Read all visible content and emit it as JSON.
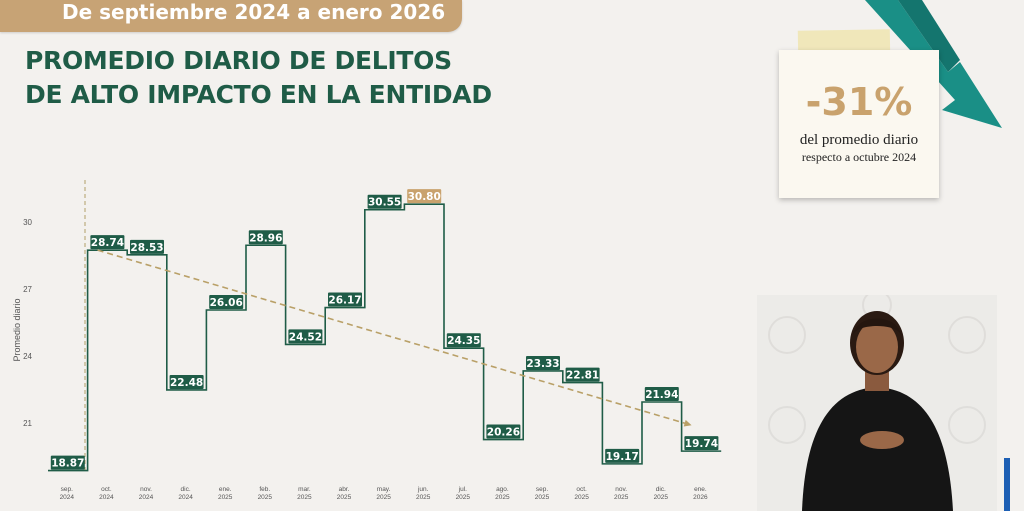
{
  "banner": {
    "text": "De septiembre 2024 a enero 2026"
  },
  "title": {
    "line1": "PROMEDIO DIARIO DE DELITOS",
    "line2": "DE ALTO IMPACTO EN LA ENTIDAD"
  },
  "stat_card": {
    "value": "-31%",
    "line1": "del promedio diario",
    "line2": "respecto a octubre 2024"
  },
  "colors": {
    "accent_green": "#1f5c47",
    "highlight_gold": "#c9a26d",
    "trend_arrow": "#1a8f86",
    "background": "#f3f1ee"
  },
  "chart_data": {
    "type": "line",
    "step": true,
    "ylabel": "Promedio diario",
    "ylim": [
      18.5,
      31.5
    ],
    "yticks": [
      "30",
      "27",
      "24",
      "21"
    ],
    "categories": [
      [
        "sep.",
        "2024"
      ],
      [
        "oct.",
        "2024"
      ],
      [
        "nov.",
        "2024"
      ],
      [
        "dic.",
        "2024"
      ],
      [
        "ene.",
        "2025"
      ],
      [
        "feb.",
        "2025"
      ],
      [
        "mar.",
        "2025"
      ],
      [
        "abr.",
        "2025"
      ],
      [
        "may.",
        "2025"
      ],
      [
        "jun.",
        "2025"
      ],
      [
        "jul.",
        "2025"
      ],
      [
        "ago.",
        "2025"
      ],
      [
        "sep.",
        "2025"
      ],
      [
        "oct.",
        "2025"
      ],
      [
        "nov.",
        "2025"
      ],
      [
        "dic.",
        "2025"
      ],
      [
        "ene.",
        "2026"
      ]
    ],
    "values": [
      18.87,
      28.74,
      28.53,
      22.48,
      26.06,
      28.96,
      24.52,
      26.17,
      30.55,
      30.8,
      24.35,
      20.26,
      23.33,
      22.81,
      19.17,
      21.94,
      19.74
    ],
    "labels": [
      "18.87",
      "28.74",
      "28.53",
      "22.48",
      "26.06",
      "28.96",
      "24.52",
      "26.17",
      "30.55",
      "30.80",
      "24.35",
      "20.26",
      "23.33",
      "22.81",
      "19.17",
      "21.94",
      "19.74"
    ],
    "highlight_index": 9,
    "trend": {
      "from": 28.74,
      "to": 20.9,
      "from_index": 1,
      "to_index": 16
    }
  }
}
